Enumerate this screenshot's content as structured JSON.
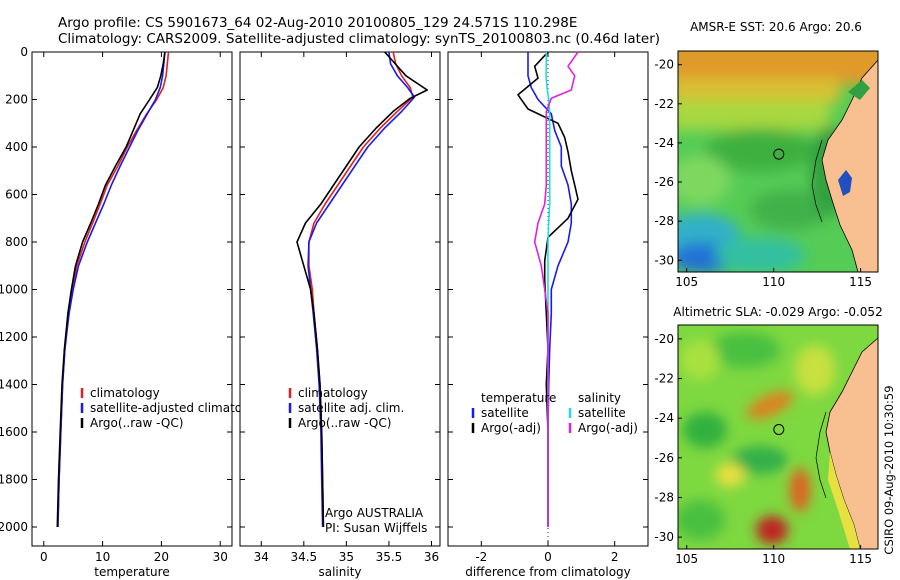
{
  "title": {
    "line1": "Argo profile: CS 5901673_64 02-Aug-2010 20100805_129 24.571S 110.298E",
    "line2": "Climatology: CARS2009. Satellite-adjusted climatology: synTS_20100803.nc (0.46d later)"
  },
  "side_label": "CSIRO 09-Aug-2010 10:30:59",
  "colors": {
    "red": "#e02020",
    "blue": "#1a1aee",
    "black": "#000000",
    "cyan": "#22dddd",
    "magenta": "#dd22dd"
  },
  "chart_data": [
    {
      "type": "line",
      "id": "temperature",
      "xlabel": "temperature",
      "ylabel": "",
      "xlim": [
        -2,
        32
      ],
      "ylim": [
        2080,
        0
      ],
      "xticks": [
        0,
        10,
        20,
        30
      ],
      "yticks": [
        0,
        200,
        400,
        600,
        800,
        1000,
        1200,
        1400,
        1600,
        1800,
        2000
      ],
      "legend": [
        "climatology",
        "satellite-adjusted climatology",
        "Argo(..raw -QC)"
      ],
      "legend_position": "bottom-right",
      "series": [
        {
          "name": "climatology",
          "color": "red",
          "x": [
            21.2,
            21.0,
            20.8,
            20.3,
            19.2,
            17.5,
            15.8,
            14.2,
            12.6,
            10.8,
            9.6,
            8.3,
            7.0,
            5.6,
            4.9,
            4.2,
            3.6,
            3.2,
            2.9,
            2.6,
            2.4
          ],
          "y": [
            0,
            50,
            100,
            150,
            200,
            260,
            330,
            400,
            480,
            560,
            640,
            720,
            800,
            900,
            1000,
            1100,
            1250,
            1400,
            1600,
            1800,
            2000
          ]
        },
        {
          "name": "satellite-adjusted climatology",
          "color": "blue",
          "x": [
            20.6,
            20.4,
            20.2,
            19.8,
            19.0,
            17.6,
            16.0,
            14.6,
            13.0,
            11.5,
            10.2,
            8.8,
            7.4,
            5.9,
            5.0,
            4.3,
            3.6,
            3.2,
            2.9,
            2.6,
            2.4
          ],
          "y": [
            0,
            50,
            100,
            150,
            200,
            260,
            330,
            400,
            480,
            560,
            640,
            720,
            800,
            900,
            1000,
            1100,
            1250,
            1400,
            1600,
            1800,
            2000
          ]
        },
        {
          "name": "Argo(..raw -QC)",
          "color": "black",
          "x": [
            20.6,
            20.3,
            19.9,
            19.3,
            18.0,
            16.4,
            15.2,
            14.0,
            12.2,
            10.5,
            9.3,
            8.0,
            6.6,
            5.4,
            4.7,
            4.1,
            3.5,
            3.1,
            2.8,
            2.5,
            2.3
          ],
          "y": [
            0,
            50,
            100,
            150,
            200,
            260,
            330,
            400,
            480,
            560,
            640,
            720,
            800,
            900,
            1000,
            1100,
            1250,
            1400,
            1600,
            1800,
            2000
          ]
        }
      ]
    },
    {
      "type": "line",
      "id": "salinity",
      "xlabel": "salinity",
      "ylabel": "",
      "xlim": [
        33.75,
        36.1
      ],
      "ylim": [
        2080,
        0
      ],
      "xticks": [
        34,
        34.5,
        35,
        35.5,
        36
      ],
      "yticks": [
        0,
        200,
        400,
        600,
        800,
        1000,
        1200,
        1400,
        1600,
        1800,
        2000
      ],
      "legend": [
        "climatology",
        "satellite adj. clim.",
        "Argo(..raw -QC)"
      ],
      "legend_position": "bottom-right",
      "annotation": [
        "Argo AUSTRALIA",
        "PI: Susan Wijffels"
      ],
      "series": [
        {
          "name": "climatology",
          "color": "red",
          "x": [
            35.55,
            35.58,
            35.65,
            35.75,
            35.78,
            35.6,
            35.4,
            35.2,
            35.05,
            34.9,
            34.75,
            34.62,
            34.56,
            34.56,
            34.6,
            34.62,
            34.66,
            34.69,
            34.71,
            34.72,
            34.73
          ],
          "y": [
            0,
            50,
            100,
            150,
            190,
            250,
            320,
            400,
            480,
            560,
            640,
            720,
            800,
            900,
            1000,
            1100,
            1250,
            1400,
            1600,
            1800,
            2000
          ]
        },
        {
          "name": "satellite adj. clim.",
          "color": "blue",
          "x": [
            35.5,
            35.52,
            35.6,
            35.72,
            35.8,
            35.65,
            35.45,
            35.25,
            35.1,
            34.95,
            34.8,
            34.65,
            34.56,
            34.55,
            34.58,
            34.61,
            34.65,
            34.68,
            34.7,
            34.71,
            34.72
          ],
          "y": [
            0,
            50,
            100,
            150,
            190,
            250,
            320,
            400,
            480,
            560,
            640,
            720,
            800,
            900,
            1000,
            1100,
            1250,
            1400,
            1600,
            1800,
            2000
          ]
        },
        {
          "name": "Argo(..raw -QC)",
          "color": "black",
          "x": [
            35.45,
            35.55,
            35.7,
            35.95,
            35.75,
            35.55,
            35.35,
            35.15,
            35.0,
            34.85,
            34.7,
            34.52,
            34.42,
            34.5,
            34.58,
            34.62,
            34.66,
            34.69,
            34.71,
            34.72,
            34.73
          ],
          "y": [
            0,
            40,
            100,
            160,
            195,
            250,
            320,
            400,
            480,
            560,
            640,
            720,
            800,
            900,
            1000,
            1100,
            1250,
            1400,
            1600,
            1800,
            2000
          ]
        }
      ]
    },
    {
      "type": "line",
      "id": "difference",
      "xlabel": "difference from climatology",
      "ylabel": "",
      "xlim": [
        -3.0,
        3.0
      ],
      "ylim": [
        2080,
        0
      ],
      "xticks": [
        -2,
        0,
        2
      ],
      "yticks": [
        0,
        200,
        400,
        600,
        800,
        1000,
        1200,
        1400,
        1600,
        1800,
        2000
      ],
      "legend_temperature": [
        "temperature",
        "satellite",
        "Argo(-adj)"
      ],
      "legend_salinity": [
        "salinity",
        "satellite",
        "Argo(-adj)"
      ],
      "legend_position": "bottom",
      "series": [
        {
          "name": "temperature satellite",
          "color": "blue",
          "x": [
            -0.6,
            -0.6,
            -0.6,
            -0.5,
            -0.3,
            0.1,
            0.2,
            0.4,
            0.4,
            0.6,
            0.7,
            0.7,
            0.6,
            0.3,
            0.1,
            0.1,
            0.05,
            0.02,
            0.0,
            0.0,
            0.0
          ],
          "y": [
            0,
            50,
            100,
            150,
            200,
            260,
            330,
            400,
            480,
            560,
            640,
            720,
            800,
            900,
            1000,
            1100,
            1250,
            1400,
            1600,
            1800,
            2000
          ]
        },
        {
          "name": "temperature Argo(-adj)",
          "color": "black",
          "x": [
            0.0,
            -0.4,
            -0.3,
            -0.9,
            -0.6,
            0.3,
            0.5,
            0.6,
            0.7,
            0.8,
            0.9,
            0.6,
            0.0,
            -0.1,
            -0.1,
            -0.05,
            0.0,
            -0.05,
            0.0,
            0.0,
            0.0
          ],
          "y": [
            0,
            60,
            110,
            180,
            240,
            300,
            360,
            420,
            500,
            560,
            620,
            700,
            780,
            880,
            960,
            1100,
            1250,
            1400,
            1600,
            1800,
            2000
          ]
        },
        {
          "name": "salinity satellite",
          "color": "cyan",
          "x": [
            -0.05,
            -0.05,
            -0.06,
            -0.03,
            0.02,
            0.05,
            0.05,
            0.05,
            0.05,
            0.05,
            0.05,
            0.02,
            0.0,
            0.0,
            0.0,
            0.0,
            0.0,
            0.0,
            0.0,
            0.0,
            0.0
          ],
          "y": [
            0,
            50,
            100,
            150,
            200,
            260,
            330,
            400,
            480,
            560,
            640,
            720,
            800,
            900,
            1000,
            1100,
            1250,
            1400,
            1600,
            1800,
            2000
          ]
        },
        {
          "name": "salinity Argo(-adj)",
          "color": "magenta",
          "x": [
            0.9,
            0.6,
            0.8,
            0.7,
            0.1,
            -0.05,
            -0.05,
            -0.05,
            -0.05,
            -0.05,
            -0.1,
            -0.3,
            -0.4,
            -0.2,
            -0.1,
            0.0,
            0.0,
            0.0,
            0.0,
            0.0,
            0.0
          ],
          "y": [
            0,
            60,
            100,
            160,
            195,
            250,
            320,
            400,
            480,
            560,
            640,
            720,
            800,
            900,
            1000,
            1100,
            1250,
            1400,
            1600,
            1800,
            2000
          ]
        }
      ]
    },
    {
      "type": "heatmap",
      "id": "sst-map",
      "title": "AMSR-E SST: 20.6 Argo: 20.6",
      "xlim": [
        104.5,
        116
      ],
      "ylim": [
        -30.6,
        -19.3
      ],
      "xticks": [
        105,
        110,
        115
      ],
      "yticks": [
        -20,
        -22,
        -24,
        -26,
        -28,
        -30
      ],
      "argo_marker": {
        "lon": 110.298,
        "lat": -24.571
      }
    },
    {
      "type": "heatmap",
      "id": "sla-map",
      "title": "Altimetric SLA: -0.029 Argo: -0.052",
      "xlim": [
        104.5,
        116
      ],
      "ylim": [
        -30.6,
        -19.3
      ],
      "xticks": [
        105,
        110,
        115
      ],
      "yticks": [
        -20,
        -22,
        -24,
        -26,
        -28,
        -30
      ],
      "argo_marker": {
        "lon": 110.298,
        "lat": -24.571
      }
    }
  ]
}
